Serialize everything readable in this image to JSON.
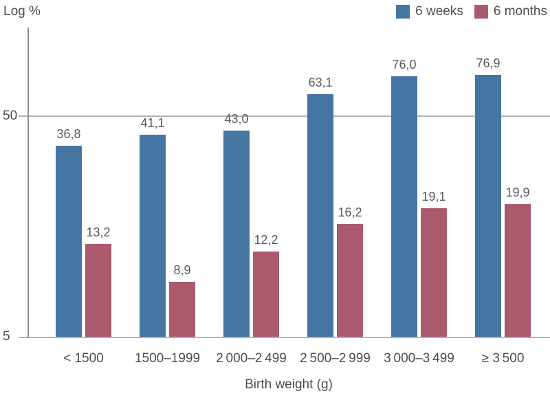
{
  "chart_data": {
    "type": "bar",
    "yscale": "log",
    "ylabel": "Log %",
    "xlabel": "Birth weight (g)",
    "ytick_labels": [
      "5",
      "50"
    ],
    "ytick_values": [
      5,
      50
    ],
    "ylim": [
      5,
      125
    ],
    "grid": "horizontal gridline at 50 only; baseline at 5",
    "legend_position": "top-right",
    "categories": [
      "< 1500",
      "1500–1999",
      "2 000–2 499",
      "2 500–2 999",
      "3 000–3 499",
      "≥ 3 500"
    ],
    "series": [
      {
        "name": "6 weeks",
        "color": "#4475A3",
        "values": [
          36.8,
          41.1,
          43.0,
          63.1,
          76.0,
          76.9
        ],
        "value_labels": [
          "36,8",
          "41,1",
          "43,0",
          "63,1",
          "76,0",
          "76,9"
        ]
      },
      {
        "name": "6 months",
        "color": "#AB5A6D",
        "values": [
          13.2,
          8.9,
          12.2,
          16.2,
          19.1,
          19.9
        ],
        "value_labels": [
          "13,2",
          "8,9",
          "12,2",
          "16,2",
          "19,1",
          "19,9"
        ]
      }
    ]
  },
  "colors": {
    "series_6_weeks": "#4475A3",
    "series_6_months": "#AB5A6D",
    "gridline": "#b3b3b3",
    "axis_line": "#8f8f8f",
    "text": "#4d4d4d",
    "value_label_text": "#595959"
  }
}
